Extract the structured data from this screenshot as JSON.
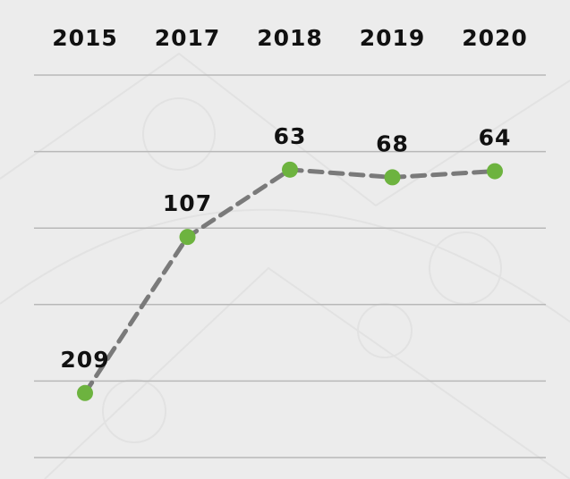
{
  "chart_data": {
    "type": "line",
    "categories": [
      "2015",
      "2017",
      "2018",
      "2019",
      "2020"
    ],
    "series": [
      {
        "color": "#6db33f",
        "line_color": "#7a7a7a",
        "values": [
          209,
          107,
          63,
          68,
          64
        ]
      }
    ],
    "ylim": [
      0,
      250
    ],
    "yticks": [
      0,
      50,
      100,
      150,
      200,
      250
    ],
    "inverted_y": true,
    "grid": true
  }
}
